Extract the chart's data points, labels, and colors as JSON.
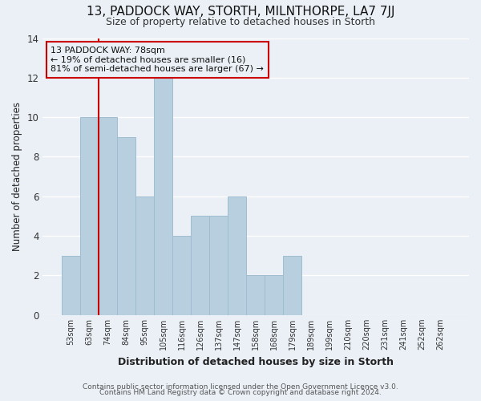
{
  "title": "13, PADDOCK WAY, STORTH, MILNTHORPE, LA7 7JJ",
  "subtitle": "Size of property relative to detached houses in Storth",
  "xlabel": "Distribution of detached houses by size in Storth",
  "ylabel": "Number of detached properties",
  "bar_labels": [
    "53sqm",
    "63sqm",
    "74sqm",
    "84sqm",
    "95sqm",
    "105sqm",
    "116sqm",
    "126sqm",
    "137sqm",
    "147sqm",
    "158sqm",
    "168sqm",
    "179sqm",
    "189sqm",
    "199sqm",
    "210sqm",
    "220sqm",
    "231sqm",
    "241sqm",
    "252sqm",
    "262sqm"
  ],
  "bar_values": [
    3,
    10,
    10,
    9,
    6,
    12,
    4,
    5,
    5,
    6,
    2,
    2,
    3,
    0,
    0,
    0,
    0,
    0,
    0,
    0,
    0
  ],
  "bar_color": "#b8cfe0",
  "bar_edge_color": "#a0bcd0",
  "annotation_title": "13 PADDOCK WAY: 78sqm",
  "annotation_line1": "← 19% of detached houses are smaller (16)",
  "annotation_line2": "81% of semi-detached houses are larger (67) →",
  "vline_color": "#cc0000",
  "vline_x_index": 2,
  "ylim": [
    0,
    14
  ],
  "yticks": [
    0,
    2,
    4,
    6,
    8,
    10,
    12,
    14
  ],
  "footer1": "Contains HM Land Registry data © Crown copyright and database right 2024.",
  "footer2": "Contains public sector information licensed under the Open Government Licence v3.0.",
  "bg_color": "#eaf0f6",
  "grid_color": "#ffffff",
  "bar_width": 1.0
}
